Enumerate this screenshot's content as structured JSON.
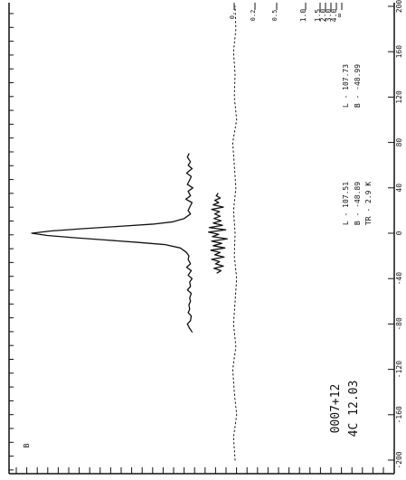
{
  "chart_data": {
    "type": "line",
    "title": "",
    "xlabel": "",
    "ylabel": "",
    "x_axis": {
      "ticks": [
        "-200",
        "-160",
        "-120",
        "-80",
        "-40",
        "0",
        "40",
        "80",
        "120",
        "160",
        "200"
      ],
      "range": [
        -200,
        200
      ]
    },
    "y_axis": {
      "ticks": [
        "0.",
        "0.2",
        "0.5",
        "1.0",
        "1.5",
        "2.0",
        "3.0",
        "4.0",
        "∞"
      ]
    },
    "annotations": {
      "source_name": "0007+12",
      "source_alt_name": "4C 12.03",
      "upper_l": "L - 107.73",
      "upper_b": "B - -48.99",
      "lower_l": "L - 107.51",
      "lower_b": "B - -48.89",
      "temp": "TR - 2.9 K",
      "corner_mark": "B"
    },
    "series": [
      {
        "x": [
          -87,
          -84,
          -80,
          -77,
          -73,
          -70,
          -67,
          -63,
          -60,
          -57,
          -53,
          -50,
          -47,
          -43,
          -40,
          -37,
          -33,
          -30,
          -27,
          -23,
          -20,
          -17,
          -13,
          -10,
          -8,
          -6,
          -4,
          -2,
          0,
          2,
          4,
          6,
          8,
          10,
          13,
          17,
          20,
          23,
          27,
          30,
          33,
          37,
          40,
          43,
          47,
          50,
          53,
          57,
          60,
          63,
          67,
          70
        ],
        "y": [
          0.55,
          0.58,
          0.61,
          0.57,
          0.56,
          0.6,
          0.58,
          0.59,
          0.57,
          0.58,
          0.56,
          0.61,
          0.57,
          0.58,
          0.55,
          0.6,
          0.56,
          0.62,
          0.57,
          0.6,
          0.59,
          0.62,
          0.7,
          0.9,
          1.25,
          1.65,
          2.05,
          2.4,
          2.6,
          2.35,
          1.95,
          1.5,
          1.05,
          0.8,
          0.65,
          0.57,
          0.6,
          0.58,
          0.55,
          0.63,
          0.57,
          0.6,
          0.54,
          0.61,
          0.58,
          0.56,
          0.62,
          0.55,
          0.6,
          0.57,
          0.61,
          0.59
        ]
      },
      {
        "x": [
          -35,
          -33,
          -31,
          -29,
          -27,
          -25,
          -23,
          -21,
          -19,
          -17,
          -15,
          -13,
          -11,
          -9,
          -7,
          -5,
          -3,
          -1,
          1,
          3,
          5,
          7,
          9,
          11,
          13,
          15,
          17,
          19,
          21,
          23,
          25,
          27,
          29,
          31,
          33,
          35
        ],
        "y": [
          0.23,
          0.18,
          0.27,
          0.15,
          0.25,
          0.2,
          0.3,
          0.14,
          0.26,
          0.19,
          0.31,
          0.13,
          0.28,
          0.17,
          0.3,
          0.1,
          0.29,
          0.21,
          0.34,
          0.12,
          0.33,
          0.16,
          0.28,
          0.18,
          0.27,
          0.19,
          0.26,
          0.2,
          0.3,
          0.15,
          0.28,
          0.21,
          0.26,
          0.19,
          0.24,
          0.22
        ]
      },
      {
        "x": [
          -200,
          -180,
          -160,
          -140,
          -120,
          -100,
          -80,
          -60,
          -40,
          -20,
          0,
          20,
          40,
          60,
          80,
          100,
          120,
          140,
          160,
          180,
          200
        ],
        "y": [
          0.0,
          0.02,
          -0.02,
          0.01,
          0.03,
          -0.01,
          0.02,
          0.0,
          -0.02,
          0.01,
          0.0,
          0.02,
          -0.01,
          0.01,
          0.03,
          -0.02,
          0.01,
          0.0,
          0.02,
          -0.01,
          0.0
        ]
      }
    ]
  }
}
